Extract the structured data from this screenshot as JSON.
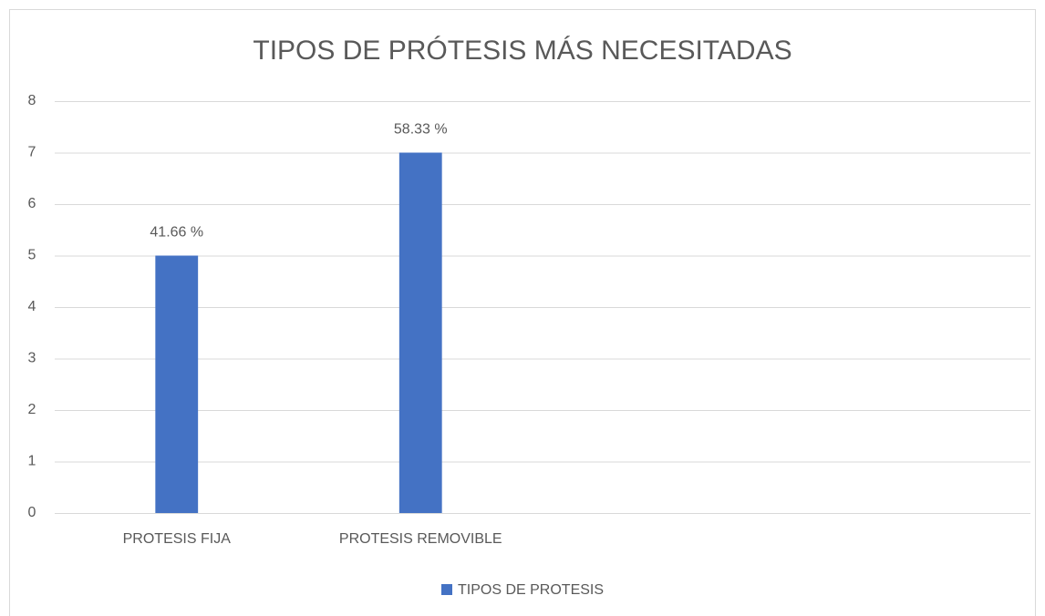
{
  "chart_data": {
    "type": "bar",
    "title": "TIPOS DE PRÓTESIS MÁS NECESITADAS",
    "categories": [
      "PROTESIS FIJA",
      "PROTESIS REMOVIBLE",
      null,
      null
    ],
    "series": [
      {
        "name": "TIPOS DE PROTESIS",
        "color": "#4472c4",
        "values": [
          5,
          7,
          null,
          null
        ]
      }
    ],
    "annotations": [
      "41.66 %",
      "58.33 %",
      null,
      null
    ],
    "ylim": [
      0,
      8
    ],
    "yticks": [
      0,
      1,
      2,
      3,
      4,
      5,
      6,
      7,
      8
    ],
    "grid": true,
    "legend": "bottom"
  }
}
